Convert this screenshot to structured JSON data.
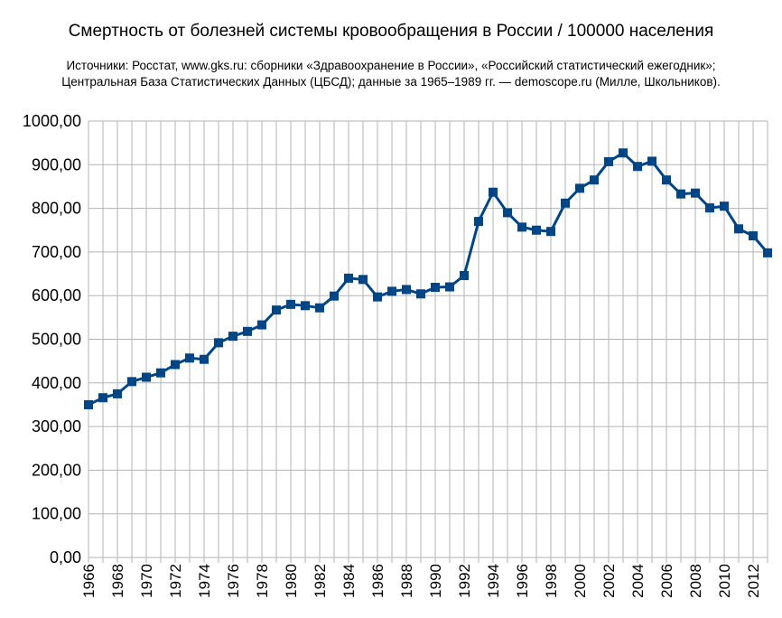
{
  "title": "Смертность от болезней системы кровообращения в России / 100000 населения",
  "subtitle_line1": "Источники: Росстат, www.gks.ru: сборники «Здравоохранение в России», «Российский статистический ежегодник»;",
  "subtitle_line2": "Центральная База Статистических Данных (ЦБСД);  данные за 1965–1989 гг. — demoscope.ru (Милле, Школьников).",
  "colors": {
    "line": "#004586",
    "grid": "#b3b3b3",
    "axis": "#b3b3b3"
  },
  "chart_data": {
    "type": "line",
    "title": "Смертность от болезней системы кровообращения в России / 100000 населения",
    "xlabel": "",
    "ylabel": "",
    "ylim": [
      0,
      1000
    ],
    "xlim": [
      1966,
      2013
    ],
    "yticks": [
      "0,00",
      "100,00",
      "200,00",
      "300,00",
      "400,00",
      "500,00",
      "600,00",
      "700,00",
      "800,00",
      "900,00",
      "1000,00"
    ],
    "xticks": [
      "1966",
      "1968",
      "1970",
      "1972",
      "1974",
      "1976",
      "1978",
      "1980",
      "1982",
      "1984",
      "1986",
      "1988",
      "1990",
      "1992",
      "1994",
      "1996",
      "1998",
      "2000",
      "2002",
      "2004",
      "2006",
      "2008",
      "2010",
      "2012"
    ],
    "grid": true,
    "legend": "none",
    "series": [
      {
        "x": [
          1966,
          1967,
          1968,
          1969,
          1970,
          1971,
          1972,
          1973,
          1974,
          1975,
          1976,
          1977,
          1978,
          1979,
          1980,
          1981,
          1982,
          1983,
          1984,
          1985,
          1986,
          1987,
          1988,
          1989,
          1990,
          1991,
          1992,
          1993,
          1994,
          1995,
          1996,
          1997,
          1998,
          1999,
          2000,
          2001,
          2002,
          2003,
          2004,
          2005,
          2006,
          2007,
          2008,
          2009,
          2010,
          2011,
          2012,
          2013
        ],
        "values": [
          350,
          366,
          375,
          403,
          413,
          423,
          442,
          457,
          454,
          492,
          507,
          518,
          533,
          567,
          580,
          577,
          572,
          599,
          640,
          637,
          597,
          610,
          614,
          604,
          619,
          620,
          646,
          770,
          837,
          790,
          757,
          750,
          747,
          812,
          846,
          865,
          907,
          927,
          896,
          908,
          865,
          833,
          835,
          801,
          805,
          753,
          737,
          698
        ]
      }
    ]
  }
}
